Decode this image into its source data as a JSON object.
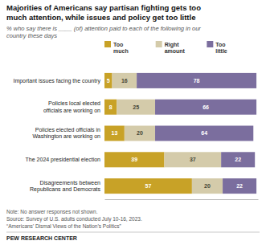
{
  "chart_data": {
    "type": "bar",
    "orientation": "horizontal",
    "stacked": true,
    "data_labels": true,
    "tick_labels": false,
    "legend": "top",
    "title": "Majorities of Americans say partisan fighting gets too\nmuch attention, while issues and policy get too little",
    "subtitle": "% who say there is ____ (of) attention paid to each of the following in our\ncountry these days",
    "categories": [
      "Important issues facing the country",
      "Policies local elected\nofficials are working on",
      "Policies elected officials in\nWashington are working on",
      "The 2024 presidential election",
      "Disagreements between\nRepublicans and Democrats"
    ],
    "series": [
      {
        "name": "Too\nmuch",
        "color": "#c8a227",
        "values": [
          5,
          8,
          13,
          39,
          57
        ]
      },
      {
        "name": "Right\namount",
        "color": "#d4cbaa",
        "values": [
          16,
          25,
          20,
          37,
          20
        ]
      },
      {
        "name": "Too\nlittle",
        "color": "#7b6e9e",
        "values": [
          78,
          66,
          64,
          22,
          22
        ]
      }
    ],
    "xlim": [
      0,
      100
    ],
    "note": "Note: No answer responses not shown.",
    "source": [
      "Source: Survey of U.S. adults conducted July 10-16, 2023.",
      "“Americans’ Dismal Views of the Nation’s Politics”"
    ],
    "brand": "PEW RESEARCH CENTER"
  }
}
